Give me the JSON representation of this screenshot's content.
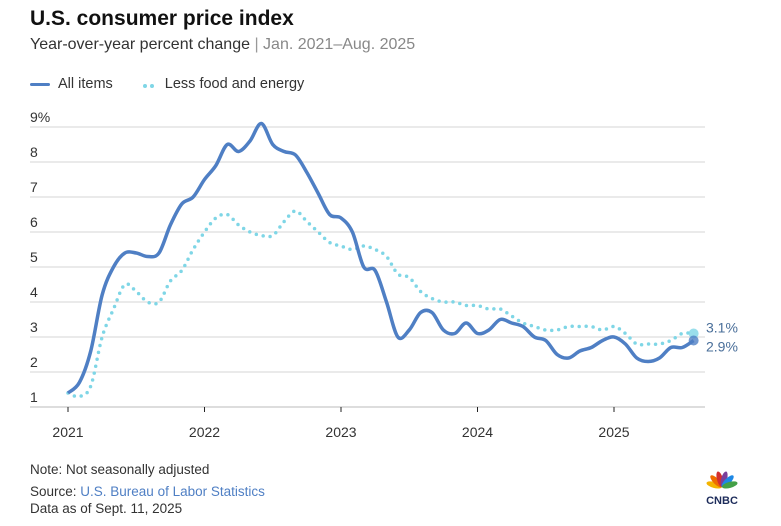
{
  "header": {
    "title": "U.S. consumer price index",
    "subtitle": "Year-over-year percent change",
    "separator": "|",
    "range": "Jan. 2021–Aug. 2025"
  },
  "legend": [
    {
      "label": "All items",
      "style": "solid"
    },
    {
      "label": "Less food and energy",
      "style": "dotted"
    }
  ],
  "colors": {
    "all_items": "#4f7fc4",
    "core": "#7fd6e6",
    "grid": "#d6d6d6"
  },
  "chart_data": {
    "type": "line",
    "title": "U.S. consumer price index",
    "subtitle": "Year-over-year percent change | Jan. 2021–Aug. 2025",
    "xlabel": "",
    "ylabel": "",
    "ylim": [
      1,
      9
    ],
    "yticks": [
      "1",
      "2",
      "3",
      "4",
      "5",
      "6",
      "7",
      "8",
      "9%"
    ],
    "xticks": [
      "2021",
      "2022",
      "2023",
      "2024",
      "2025"
    ],
    "x_start": "2021-01",
    "frequency": "monthly",
    "grid": true,
    "legend_position": "top-left",
    "series": [
      {
        "name": "All items",
        "values": [
          1.4,
          1.7,
          2.6,
          4.2,
          5.0,
          5.4,
          5.4,
          5.3,
          5.4,
          6.2,
          6.8,
          7.0,
          7.5,
          7.9,
          8.5,
          8.3,
          8.6,
          9.1,
          8.5,
          8.3,
          8.2,
          7.7,
          7.1,
          6.5,
          6.4,
          6.0,
          5.0,
          4.9,
          4.0,
          3.0,
          3.2,
          3.7,
          3.7,
          3.2,
          3.1,
          3.4,
          3.1,
          3.2,
          3.5,
          3.4,
          3.3,
          3.0,
          2.9,
          2.5,
          2.4,
          2.6,
          2.7,
          2.9,
          3.0,
          2.8,
          2.4,
          2.3,
          2.4,
          2.7,
          2.7,
          2.9
        ],
        "end_label": "2.9%"
      },
      {
        "name": "Less food and energy",
        "values": [
          1.4,
          1.3,
          1.6,
          3.0,
          3.8,
          4.5,
          4.3,
          4.0,
          4.0,
          4.6,
          4.9,
          5.5,
          6.0,
          6.4,
          6.5,
          6.2,
          6.0,
          5.9,
          5.9,
          6.3,
          6.6,
          6.3,
          6.0,
          5.7,
          5.6,
          5.5,
          5.6,
          5.5,
          5.3,
          4.8,
          4.7,
          4.3,
          4.1,
          4.0,
          4.0,
          3.9,
          3.9,
          3.8,
          3.8,
          3.6,
          3.4,
          3.3,
          3.2,
          3.2,
          3.3,
          3.3,
          3.3,
          3.2,
          3.3,
          3.1,
          2.8,
          2.8,
          2.8,
          2.9,
          3.1,
          3.1
        ],
        "end_label": "3.1%"
      }
    ]
  },
  "footer": {
    "note": "Note: Not seasonally adjusted",
    "source_prefix": "Source: ",
    "source_link": "U.S. Bureau of Labor Statistics",
    "data_as_of": "Data as of Sept. 11, 2025"
  },
  "logo": {
    "text": "CNBC"
  }
}
